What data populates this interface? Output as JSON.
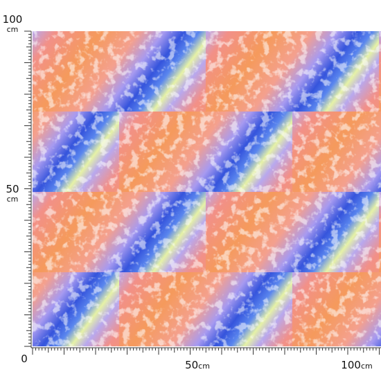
{
  "rulers": {
    "left": [
      {
        "number": "100",
        "unit": "cm"
      },
      {
        "number": "50",
        "unit": "cm"
      }
    ],
    "origin": "0",
    "bottom": [
      {
        "number": "50",
        "unit": "cm"
      },
      {
        "number": "100",
        "unit": "cm"
      }
    ]
  }
}
